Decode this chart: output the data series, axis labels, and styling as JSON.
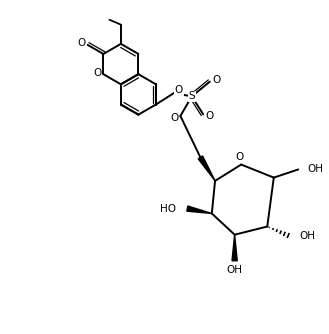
{
  "background_color": "#ffffff",
  "line_color": "#000000",
  "line_width": 1.4,
  "font_size": 7.5,
  "figure_size": [
    3.29,
    3.34
  ],
  "dpi": 100,
  "xlim": [
    0,
    10
  ],
  "ylim": [
    0,
    10.15
  ]
}
